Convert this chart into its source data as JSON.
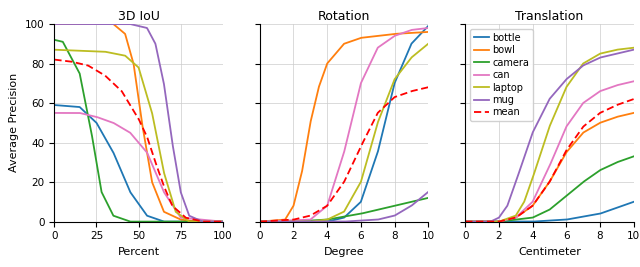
{
  "title_iou": "3D IoU",
  "title_rot": "Rotation",
  "title_trans": "Translation",
  "xlabel_iou": "Percent",
  "xlabel_rot": "Degree",
  "xlabel_trans": "Centimeter",
  "ylabel": "Average Precision",
  "xlim_iou": [
    0,
    100
  ],
  "xlim_rot": [
    0,
    10
  ],
  "xlim_trans": [
    0,
    10
  ],
  "ylim": [
    0,
    100
  ],
  "xticks_iou": [
    0,
    25,
    50,
    75,
    100
  ],
  "xticks_rot": [
    0,
    2,
    4,
    6,
    8,
    10
  ],
  "xticks_trans": [
    0,
    2,
    4,
    6,
    8,
    10
  ],
  "yticks": [
    0,
    20,
    40,
    60,
    80,
    100
  ],
  "colors": {
    "bottle": "#1f77b4",
    "bowl": "#ff7f0e",
    "camera": "#2ca02c",
    "can": "#e377c2",
    "laptop": "#bcbd22",
    "mug": "#9467bd",
    "mean": "#ff0000"
  },
  "legend_labels": [
    "bottle",
    "bowl",
    "camera",
    "can",
    "laptop",
    "mug",
    "mean"
  ],
  "figsize": [
    6.4,
    2.67
  ],
  "dpi": 100
}
